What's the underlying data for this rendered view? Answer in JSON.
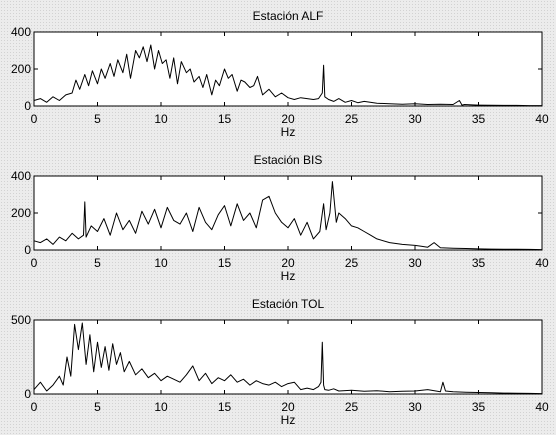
{
  "chart_data": [
    {
      "type": "line",
      "title": "Estación ALF",
      "xlabel": "Hz",
      "ylabel": "",
      "xlim": [
        0,
        40
      ],
      "ylim": [
        0,
        400
      ],
      "xticks": [
        0,
        5,
        10,
        15,
        20,
        25,
        30,
        35,
        40
      ],
      "yticks": [
        0,
        200,
        400
      ],
      "grid": false,
      "series": [
        {
          "x": [
            0,
            0.5,
            1,
            1.5,
            2,
            2.5,
            3,
            3.3,
            3.6,
            4,
            4.3,
            4.6,
            5,
            5.3,
            5.6,
            6,
            6.3,
            6.6,
            7,
            7.3,
            7.6,
            8,
            8.3,
            8.6,
            8.9,
            9.2,
            9.5,
            9.8,
            10.1,
            10.4,
            10.7,
            11,
            11.3,
            11.6,
            12,
            12.3,
            12.6,
            13,
            13.3,
            13.6,
            14,
            14.3,
            14.6,
            15,
            15.3,
            15.6,
            16,
            16.3,
            16.6,
            17,
            17.3,
            17.6,
            18,
            18.5,
            19,
            19.5,
            20,
            20.5,
            21,
            21.5,
            22,
            22.4,
            22.7,
            22.8,
            22.9,
            23.2,
            23.6,
            24,
            24.5,
            25,
            25.5,
            26,
            27,
            28,
            29,
            30,
            31,
            32,
            33,
            33.5,
            33.7,
            33.9,
            34.5,
            35,
            36,
            37,
            38,
            39,
            40
          ],
          "y": [
            30,
            40,
            20,
            50,
            30,
            60,
            70,
            140,
            90,
            170,
            110,
            190,
            120,
            200,
            150,
            230,
            160,
            250,
            180,
            280,
            150,
            300,
            260,
            320,
            240,
            330,
            200,
            300,
            230,
            250,
            150,
            260,
            120,
            240,
            180,
            200,
            130,
            160,
            100,
            170,
            60,
            140,
            110,
            200,
            150,
            170,
            80,
            140,
            130,
            100,
            110,
            160,
            60,
            90,
            50,
            70,
            45,
            35,
            45,
            40,
            35,
            40,
            70,
            220,
            50,
            35,
            25,
            40,
            20,
            30,
            18,
            25,
            15,
            12,
            10,
            12,
            8,
            10,
            8,
            30,
            5,
            8,
            6,
            5,
            4,
            3,
            3,
            2,
            2
          ]
        }
      ]
    },
    {
      "type": "line",
      "title": "Estación BIS",
      "xlabel": "Hz",
      "ylabel": "",
      "xlim": [
        0,
        40
      ],
      "ylim": [
        0,
        400
      ],
      "xticks": [
        0,
        5,
        10,
        15,
        20,
        25,
        30,
        35,
        40
      ],
      "yticks": [
        0,
        200,
        400
      ],
      "grid": false,
      "series": [
        {
          "x": [
            0,
            0.5,
            1,
            1.5,
            2,
            2.5,
            3,
            3.5,
            3.9,
            4,
            4.1,
            4.5,
            5,
            5.5,
            6,
            6.5,
            7,
            7.5,
            8,
            8.5,
            9,
            9.5,
            10,
            10.5,
            11,
            11.5,
            12,
            12.5,
            13,
            13.5,
            14,
            14.5,
            15,
            15.5,
            16,
            16.5,
            17,
            17.5,
            18,
            18.5,
            19,
            19.5,
            20,
            20.5,
            21,
            21.5,
            22,
            22.5,
            22.8,
            23,
            23.3,
            23.5,
            23.8,
            24,
            24.5,
            25,
            25.5,
            26,
            26.5,
            27,
            28,
            29,
            30,
            30.5,
            31,
            31.5,
            32,
            33,
            34,
            35,
            36,
            37,
            38,
            39,
            40
          ],
          "y": [
            50,
            40,
            60,
            30,
            70,
            50,
            90,
            60,
            80,
            260,
            70,
            130,
            100,
            170,
            80,
            200,
            110,
            160,
            90,
            210,
            140,
            220,
            120,
            230,
            160,
            140,
            200,
            100,
            230,
            150,
            110,
            190,
            240,
            130,
            250,
            160,
            200,
            120,
            270,
            290,
            200,
            150,
            120,
            170,
            80,
            150,
            60,
            100,
            250,
            110,
            200,
            370,
            150,
            200,
            170,
            130,
            120,
            100,
            80,
            60,
            40,
            30,
            25,
            20,
            15,
            40,
            12,
            10,
            8,
            6,
            5,
            4,
            4,
            3,
            2
          ]
        }
      ]
    },
    {
      "type": "line",
      "title": "Estación TOL",
      "xlabel": "Hz",
      "ylabel": "",
      "xlim": [
        0,
        40
      ],
      "ylim": [
        0,
        500
      ],
      "xticks": [
        0,
        5,
        10,
        15,
        20,
        25,
        30,
        35,
        40
      ],
      "yticks": [
        0,
        500
      ],
      "grid": false,
      "series": [
        {
          "x": [
            0,
            0.5,
            1,
            1.5,
            2,
            2.3,
            2.6,
            2.9,
            3.2,
            3.5,
            3.8,
            4.1,
            4.4,
            4.7,
            5,
            5.3,
            5.6,
            5.9,
            6.2,
            6.5,
            6.8,
            7.1,
            7.5,
            8,
            8.5,
            9,
            9.5,
            10,
            10.5,
            11,
            11.5,
            12,
            12.5,
            13,
            13.5,
            14,
            14.5,
            15,
            15.5,
            16,
            16.5,
            17,
            17.5,
            18,
            18.5,
            19,
            19.5,
            20,
            20.5,
            21,
            21.5,
            22,
            22.4,
            22.6,
            22.7,
            22.8,
            22.9,
            23.2,
            23.6,
            24,
            25,
            26,
            27,
            28,
            29,
            30,
            31,
            32,
            32.2,
            32.4,
            33,
            34,
            35,
            36,
            37,
            38,
            39,
            40
          ],
          "y": [
            30,
            80,
            20,
            60,
            120,
            60,
            250,
            120,
            470,
            300,
            480,
            200,
            400,
            150,
            350,
            180,
            320,
            160,
            340,
            200,
            280,
            150,
            220,
            130,
            170,
            110,
            140,
            90,
            120,
            100,
            80,
            130,
            190,
            90,
            140,
            70,
            110,
            90,
            130,
            80,
            100,
            60,
            90,
            70,
            60,
            80,
            50,
            70,
            80,
            30,
            40,
            30,
            50,
            80,
            350,
            60,
            30,
            25,
            35,
            20,
            25,
            18,
            22,
            15,
            18,
            20,
            30,
            15,
            80,
            20,
            15,
            12,
            10,
            8,
            6,
            5,
            4,
            3
          ]
        }
      ]
    }
  ]
}
